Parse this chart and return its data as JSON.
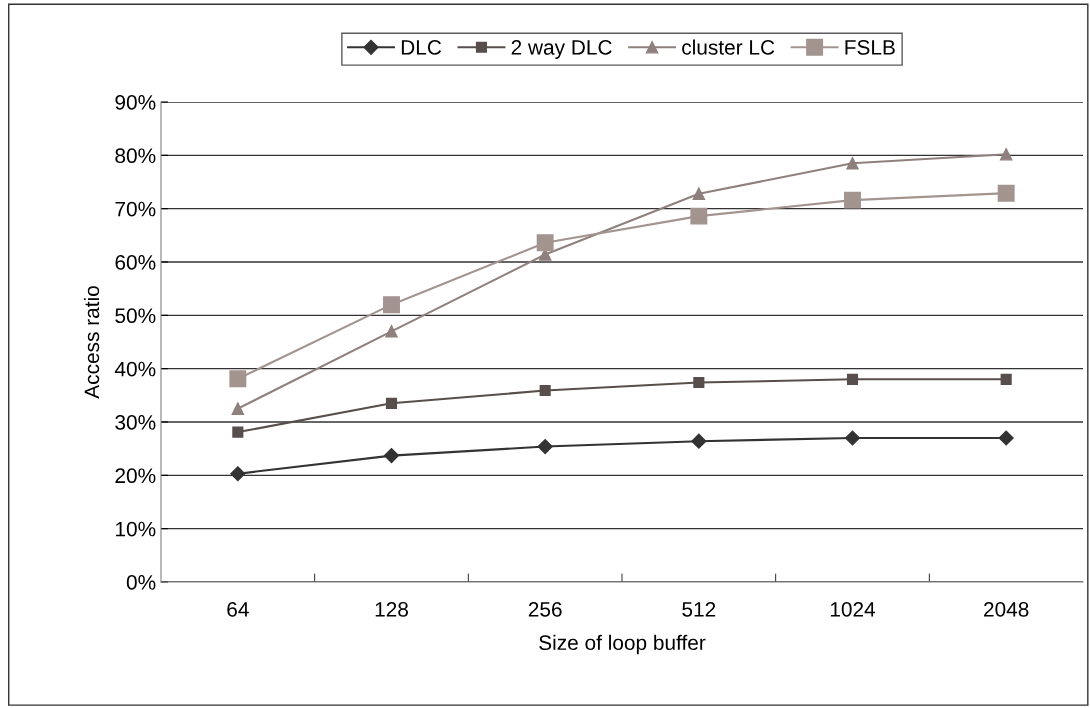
{
  "chart_data": {
    "type": "line",
    "xlabel": "Size of loop buffer",
    "ylabel": "Access ratio",
    "categories": [
      "64",
      "128",
      "256",
      "512",
      "1024",
      "2048"
    ],
    "ylim": [
      0,
      90
    ],
    "yticks": [
      {
        "value": 0,
        "label": "0%"
      },
      {
        "value": 10,
        "label": "10%"
      },
      {
        "value": 20,
        "label": "20%"
      },
      {
        "value": 30,
        "label": "30%"
      },
      {
        "value": 40,
        "label": "40%"
      },
      {
        "value": 50,
        "label": "50%"
      },
      {
        "value": 60,
        "label": "60%"
      },
      {
        "value": 70,
        "label": "70%"
      },
      {
        "value": 80,
        "label": "80%"
      },
      {
        "value": 90,
        "label": "90%"
      }
    ],
    "grid": "y",
    "legend": "top",
    "line_style": "solid",
    "series": [
      {
        "name": "DLC",
        "color": "#333333",
        "marker": "diamond",
        "values": [
          20.3,
          23.7,
          25.4,
          26.4,
          27,
          27
        ]
      },
      {
        "name": "2 way DLC",
        "color": "#584e4b",
        "marker": "square",
        "values": [
          28.1,
          33.5,
          35.9,
          37.4,
          38,
          38
        ]
      },
      {
        "name": "cluster LC",
        "color": "#8f807d",
        "marker": "triangle",
        "values": [
          32.5,
          47,
          61.4,
          72.8,
          78.5,
          80.2
        ]
      },
      {
        "name": "FSLB",
        "color": "#a39490",
        "marker": "square",
        "values": [
          38.1,
          52,
          63.6,
          68.6,
          71.6,
          72.9
        ]
      }
    ]
  }
}
